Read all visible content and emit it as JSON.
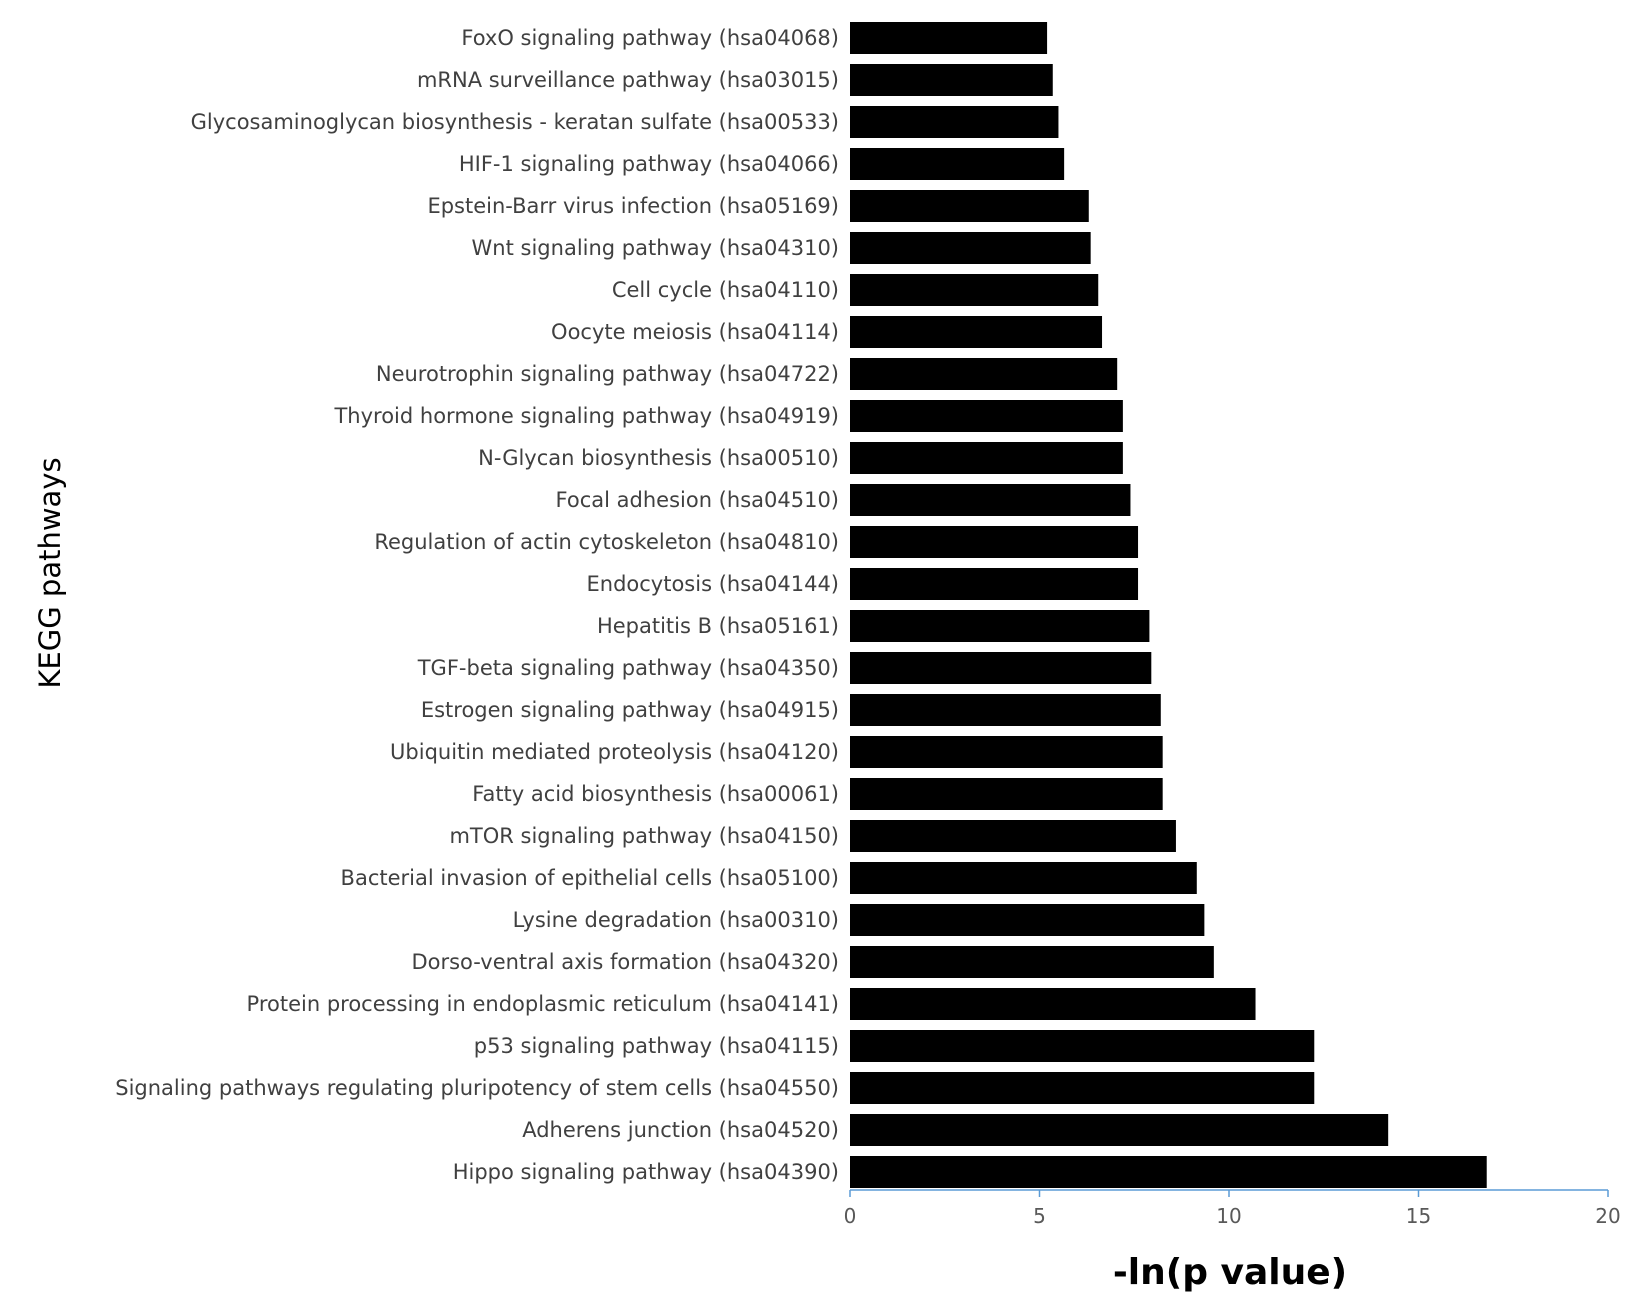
{
  "chart_data": {
    "type": "bar",
    "orientation": "horizontal",
    "title": "",
    "xlabel": "-ln(p value)",
    "ylabel": "KEGG pathways",
    "xlim": [
      0,
      20
    ],
    "xticks": [
      0,
      5,
      10,
      15,
      20
    ],
    "grid": false,
    "categories": [
      "FoxO signaling pathway (hsa04068)",
      "mRNA surveillance pathway (hsa03015)",
      "Glycosaminoglycan biosynthesis - keratan sulfate (hsa00533)",
      "HIF-1 signaling pathway (hsa04066)",
      "Epstein-Barr virus infection (hsa05169)",
      "Wnt signaling pathway (hsa04310)",
      "Cell cycle (hsa04110)",
      "Oocyte meiosis (hsa04114)",
      "Neurotrophin signaling pathway (hsa04722)",
      "Thyroid hormone signaling pathway (hsa04919)",
      "N-Glycan biosynthesis (hsa00510)",
      "Focal adhesion (hsa04510)",
      "Regulation of actin cytoskeleton (hsa04810)",
      "Endocytosis (hsa04144)",
      "Hepatitis B (hsa05161)",
      "TGF-beta signaling pathway (hsa04350)",
      "Estrogen signaling pathway (hsa04915)",
      "Ubiquitin mediated proteolysis (hsa04120)",
      "Fatty acid biosynthesis (hsa00061)",
      "mTOR signaling pathway (hsa04150)",
      "Bacterial invasion of epithelial cells (hsa05100)",
      "Lysine degradation (hsa00310)",
      "Dorso-ventral axis formation (hsa04320)",
      "Protein processing in endoplasmic reticulum (hsa04141)",
      "p53 signaling pathway (hsa04115)",
      "Signaling pathways regulating pluripotency of stem cells (hsa04550)",
      "Adherens junction (hsa04520)",
      "Hippo signaling pathway (hsa04390)"
    ],
    "values": [
      5.2,
      5.35,
      5.5,
      5.65,
      6.3,
      6.35,
      6.55,
      6.65,
      7.05,
      7.2,
      7.2,
      7.4,
      7.6,
      7.6,
      7.9,
      7.95,
      8.2,
      8.25,
      8.25,
      8.6,
      9.15,
      9.35,
      9.6,
      10.7,
      12.25,
      12.25,
      14.2,
      16.8
    ],
    "bar_color": "#000000",
    "axis_color": "#5b9bd5"
  }
}
